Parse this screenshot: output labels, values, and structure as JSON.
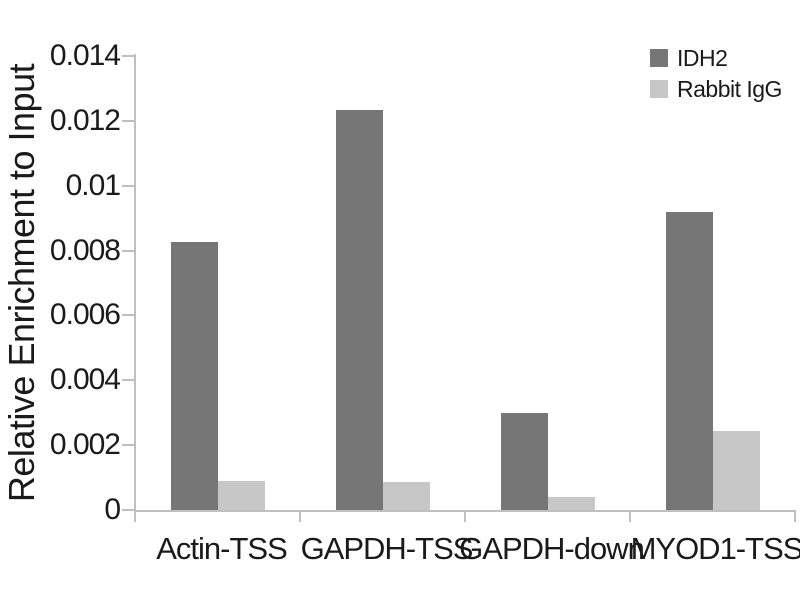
{
  "chart_data": {
    "type": "bar",
    "title": "",
    "xlabel": "",
    "ylabel": "Relative Enrichment to Input",
    "categories": [
      "Actin-TSS",
      "GAPDH-TSS",
      "GAPDH-down",
      "MYOD1-TSS"
    ],
    "series": [
      {
        "name": "IDH2",
        "color": "#767676",
        "values": [
          0.00825,
          0.01235,
          0.003,
          0.0092
        ]
      },
      {
        "name": "Rabbit IgG",
        "color": "#c7c7c7",
        "values": [
          0.00088,
          0.00085,
          0.0004,
          0.00243
        ]
      }
    ],
    "ylim": [
      0,
      0.014
    ],
    "ytick_step": 0.002,
    "ytick_labels": [
      "0",
      "0.002",
      "0.004",
      "0.006",
      "0.008",
      "0.01",
      "0.012",
      "0.014"
    ],
    "grid": false,
    "legend_position": "top-right"
  },
  "colors": {
    "axis": "#bfbfbf",
    "text": "#1a1a1a",
    "background": "#ffffff",
    "series_dark": "#767676",
    "series_light": "#c7c7c7"
  }
}
